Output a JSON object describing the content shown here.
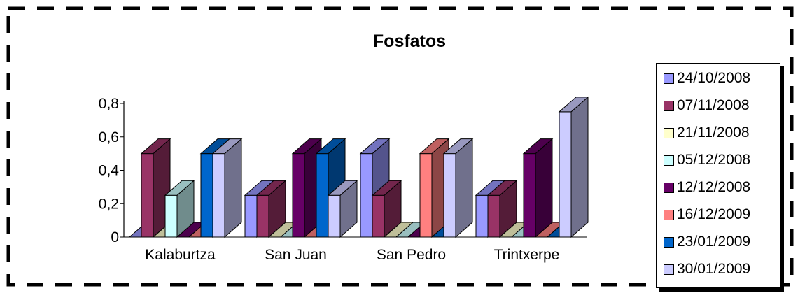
{
  "chart_data": {
    "type": "bar",
    "title": "Fosfatos",
    "categories": [
      "Kalaburtza",
      "San Juan",
      "San Pedro",
      "Trintxerpe"
    ],
    "series": [
      {
        "name": "24/10/2008",
        "color": "#9999ff",
        "values": [
          0,
          0.25,
          0.5,
          0.25
        ]
      },
      {
        "name": "07/11/2008",
        "color": "#993366",
        "values": [
          0.5,
          0.25,
          0.25,
          0.25
        ]
      },
      {
        "name": "21/11/2008",
        "color": "#ffffcc",
        "values": [
          0,
          0,
          0,
          0
        ]
      },
      {
        "name": "05/12/2008",
        "color": "#ccffff",
        "values": [
          0.25,
          0,
          0,
          0
        ]
      },
      {
        "name": "12/12/2008",
        "color": "#660066",
        "values": [
          0,
          0.5,
          0,
          0.5
        ]
      },
      {
        "name": "16/12/2009",
        "color": "#ff8080",
        "values": [
          0,
          0,
          0.5,
          0
        ]
      },
      {
        "name": "23/01/2009",
        "color": "#0066cc",
        "values": [
          0.5,
          0.5,
          0,
          0
        ]
      },
      {
        "name": "30/01/2009",
        "color": "#ccccff",
        "values": [
          0.5,
          0.25,
          0.5,
          0.75
        ]
      }
    ],
    "ylim": [
      0,
      0.8
    ],
    "yticks": [
      "0",
      "0,2",
      "0,4",
      "0,6",
      "0,8"
    ],
    "xlabel": "",
    "ylabel": "",
    "grid": false,
    "legend": "right"
  }
}
